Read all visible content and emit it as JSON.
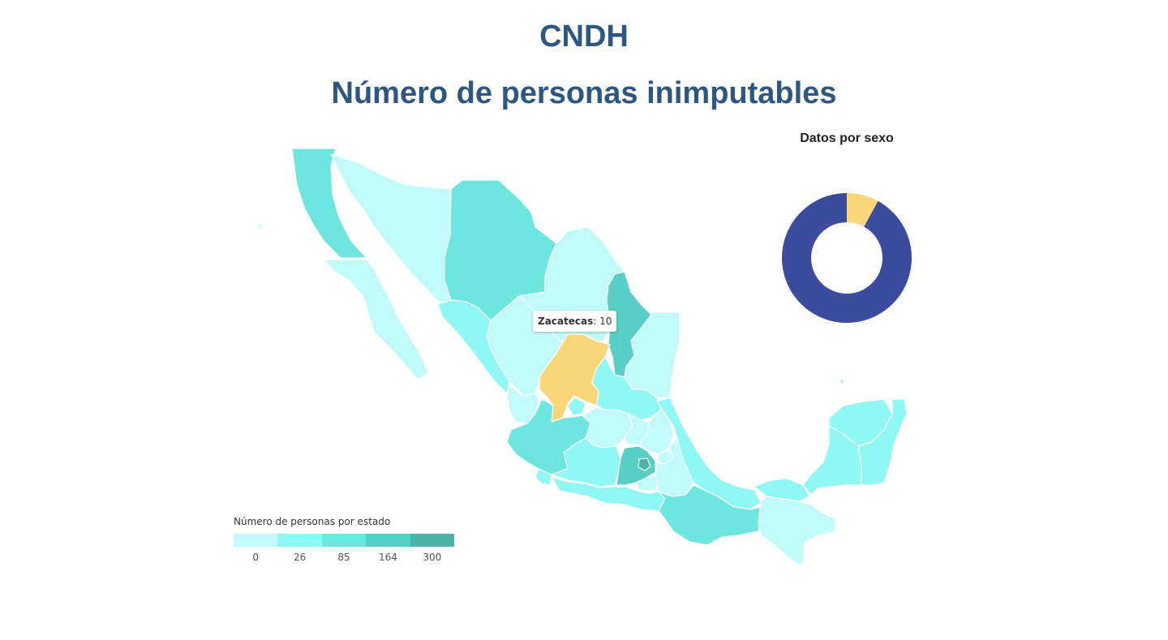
{
  "header": {
    "title": "CNDH",
    "subtitle": "Número de personas inimputables"
  },
  "map": {
    "tooltip": {
      "state": "Zacatecas",
      "value": "10"
    },
    "highlight_state": "Zacatecas",
    "highlight_color": "#f9d67a",
    "states": [
      {
        "name": "Baja California",
        "level": 2
      },
      {
        "name": "Baja California Sur",
        "level": 0
      },
      {
        "name": "Sonora",
        "level": 0
      },
      {
        "name": "Chihuahua",
        "level": 2
      },
      {
        "name": "Coahuila",
        "level": 0
      },
      {
        "name": "Nuevo León",
        "level": 3
      },
      {
        "name": "Tamaulipas",
        "level": 0
      },
      {
        "name": "Sinaloa",
        "level": 1
      },
      {
        "name": "Durango",
        "level": 0
      },
      {
        "name": "Zacatecas",
        "level": 0
      },
      {
        "name": "San Luis Potosí",
        "level": 1
      },
      {
        "name": "Nayarit",
        "level": 0
      },
      {
        "name": "Jalisco",
        "level": 2
      },
      {
        "name": "Aguascalientes",
        "level": 1
      },
      {
        "name": "Guanajuato",
        "level": 0
      },
      {
        "name": "Querétaro",
        "level": 0
      },
      {
        "name": "Hidalgo",
        "level": 0
      },
      {
        "name": "Colima",
        "level": 1
      },
      {
        "name": "Michoacán",
        "level": 1
      },
      {
        "name": "Estado de México",
        "level": 3
      },
      {
        "name": "Ciudad de México",
        "level": 4
      },
      {
        "name": "Morelos",
        "level": 0
      },
      {
        "name": "Tlaxcala",
        "level": 0
      },
      {
        "name": "Puebla",
        "level": 0
      },
      {
        "name": "Veracruz",
        "level": 1
      },
      {
        "name": "Guerrero",
        "level": 1
      },
      {
        "name": "Oaxaca",
        "level": 2
      },
      {
        "name": "Tabasco",
        "level": 1
      },
      {
        "name": "Chiapas",
        "level": 0
      },
      {
        "name": "Campeche",
        "level": 1
      },
      {
        "name": "Yucatán",
        "level": 1
      },
      {
        "name": "Quintana Roo",
        "level": 1
      }
    ]
  },
  "legend": {
    "title": "Número de personas por estado",
    "colors": [
      "#c0fbf9",
      "#8ff7f4",
      "#6ce6de",
      "#58cfc6",
      "#4db3a9"
    ],
    "ticks": [
      "0",
      "26",
      "85",
      "164",
      "300"
    ]
  },
  "donut": {
    "title": "Datos por sexo",
    "segments": [
      {
        "value": 8,
        "color": "#f9d67a"
      },
      {
        "value": 92,
        "color": "#3b4b9e"
      }
    ]
  }
}
